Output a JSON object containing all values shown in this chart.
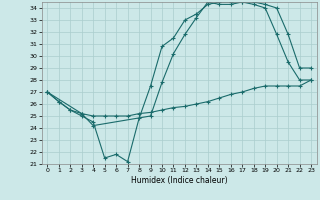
{
  "xlabel": "Humidex (Indice chaleur)",
  "bg_color": "#cce8e8",
  "line_color": "#1a6b6b",
  "grid_color": "#aacece",
  "xlim": [
    -0.5,
    23.5
  ],
  "ylim": [
    21,
    34.5
  ],
  "xticks": [
    0,
    1,
    2,
    3,
    4,
    5,
    6,
    7,
    8,
    9,
    10,
    11,
    12,
    13,
    14,
    15,
    16,
    17,
    18,
    19,
    20,
    21,
    22,
    23
  ],
  "yticks": [
    21,
    22,
    23,
    24,
    25,
    26,
    27,
    28,
    29,
    30,
    31,
    32,
    33,
    34
  ],
  "line1_x": [
    0,
    1,
    2,
    3,
    4,
    5,
    6,
    7,
    8,
    9,
    10,
    11,
    12,
    13,
    14,
    15,
    16,
    17,
    18,
    19,
    20,
    21,
    22,
    23
  ],
  "line1_y": [
    27.0,
    26.2,
    25.5,
    25.2,
    25.0,
    25.0,
    25.0,
    25.0,
    25.2,
    25.3,
    25.5,
    25.7,
    25.8,
    26.0,
    26.2,
    26.5,
    26.8,
    27.0,
    27.3,
    27.5,
    27.5,
    27.5,
    27.5,
    28.0
  ],
  "line2_x": [
    0,
    1,
    2,
    3,
    4,
    5,
    6,
    7,
    8,
    9,
    10,
    11,
    12,
    13,
    14,
    15,
    16,
    17,
    18,
    19,
    20,
    21,
    22,
    23
  ],
  "line2_y": [
    27.0,
    26.2,
    25.5,
    25.0,
    24.5,
    21.5,
    21.8,
    21.2,
    24.8,
    27.5,
    30.8,
    31.5,
    33.0,
    33.5,
    34.3,
    34.5,
    34.5,
    34.5,
    34.3,
    34.0,
    31.8,
    29.5,
    28.0,
    28.0
  ],
  "line3_x": [
    0,
    3,
    4,
    9,
    10,
    11,
    12,
    13,
    14,
    15,
    16,
    17,
    18,
    19,
    20,
    21,
    22,
    23
  ],
  "line3_y": [
    27.0,
    25.2,
    24.2,
    25.0,
    27.8,
    30.2,
    31.8,
    33.2,
    34.5,
    34.3,
    34.3,
    34.5,
    34.5,
    34.3,
    34.0,
    31.8,
    29.0,
    29.0
  ]
}
